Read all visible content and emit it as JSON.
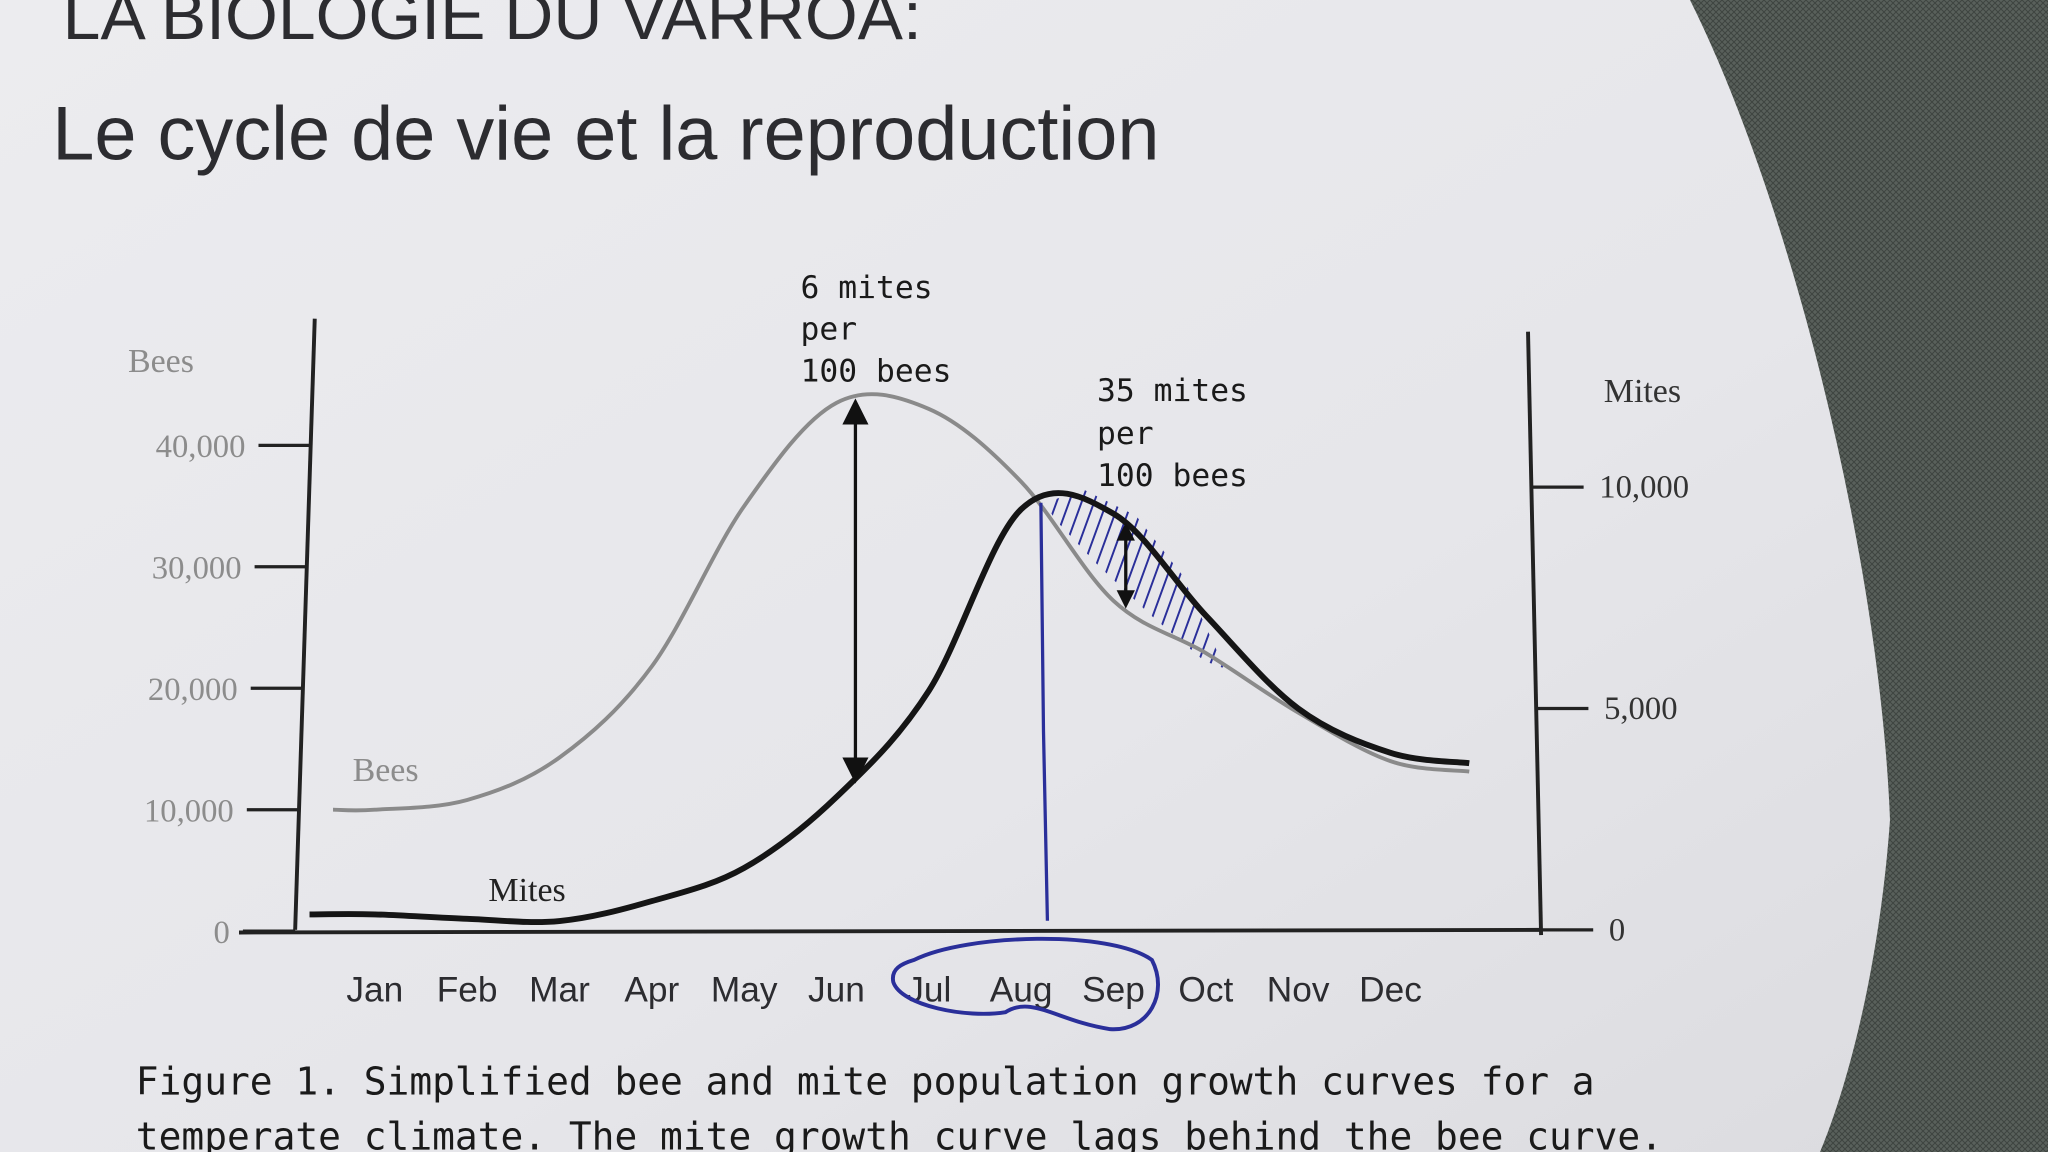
{
  "slide": {
    "title_line1": "LA BIOLOGIE DU VARROA:",
    "title_line2": "Le cycle de vie et la reproduction"
  },
  "chart_data": {
    "type": "line",
    "categories": [
      "Jan",
      "Feb",
      "Mar",
      "Apr",
      "May",
      "Jun",
      "Jul",
      "Aug",
      "Sep",
      "Oct",
      "Nov",
      "Dec"
    ],
    "left_axis": {
      "label": "Bees",
      "ticks": [
        "0",
        "10,000",
        "20,000",
        "30,000",
        "40,000"
      ],
      "ylim": [
        0,
        40000
      ]
    },
    "right_axis": {
      "label": "Mites",
      "ticks": [
        "0",
        "5,000",
        "10,000"
      ],
      "ylim": [
        0,
        10000
      ]
    },
    "series": [
      {
        "name": "Bees",
        "axis": "left",
        "color": "#8a8a8a",
        "values": [
          10000,
          10800,
          14300,
          21800,
          35000,
          43500,
          43000,
          37000,
          27200,
          22900,
          18000,
          14000
        ]
      },
      {
        "name": "Mites",
        "axis": "right",
        "color": "#151515",
        "values": [
          350,
          250,
          200,
          650,
          1400,
          3000,
          5400,
          9500,
          9400,
          7100,
          5000,
          4000
        ]
      }
    ],
    "annotations": [
      {
        "text_lines": [
          "6 mites",
          "per",
          "100 bees"
        ]
      },
      {
        "text_lines": [
          "35 mites",
          "per",
          "100 bees"
        ]
      }
    ],
    "highlight_months": [
      "Jul",
      "Aug",
      "Sep"
    ],
    "highlight_color": "#2a2f9a",
    "grid": false,
    "caption_line1": "Figure 1.  Simplified bee and mite population growth curves for a",
    "caption_line2": "temperate climate.  The mite growth curve lags behind the bee curve."
  }
}
